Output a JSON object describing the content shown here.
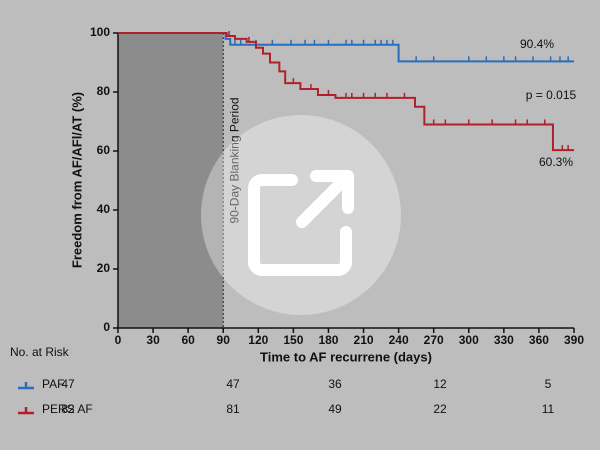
{
  "chart_data": {
    "type": "km",
    "xlabel": "Time to AF recurrene (days)",
    "ylabel": "Freedom from AF/AFl/AT (%)",
    "xlim": [
      0,
      390
    ],
    "xticks": [
      0,
      30,
      60,
      90,
      120,
      150,
      180,
      210,
      240,
      270,
      300,
      330,
      360,
      390
    ],
    "ylim": [
      0,
      100
    ],
    "yticks": [
      0,
      20,
      40,
      60,
      80,
      100
    ],
    "blanking_label": "90-Day Blanking Period",
    "blanking_x": 90,
    "annotations": [
      "90.4%",
      "p = 0.015",
      "60.3%"
    ],
    "series": [
      {
        "name": "PAF",
        "color": "#2a6ebb",
        "x": [
          0,
          90,
          92,
          96,
          240,
          390
        ],
        "values": [
          100,
          100,
          98,
          96,
          90.4,
          90.4
        ],
        "censored": {
          "x": [
            100,
            105,
            118,
            132,
            148,
            160,
            168,
            180,
            195,
            200,
            210,
            220,
            225,
            230,
            235,
            255,
            270,
            300,
            315,
            330,
            340,
            355,
            370,
            378,
            385
          ],
          "values": [
            96,
            96,
            96,
            96,
            96,
            96,
            96,
            96,
            96,
            96,
            96,
            96,
            96,
            96,
            96,
            90.4,
            90.4,
            90.4,
            90.4,
            90.4,
            90.4,
            90.4,
            90.4,
            90.4,
            90.4
          ]
        }
      },
      {
        "name": "PERS AF",
        "color": "#b0202a",
        "x": [
          0,
          90,
          93,
          100,
          110,
          118,
          124,
          130,
          138,
          143,
          156,
          171,
          186,
          254,
          262,
          372,
          390
        ],
        "values": [
          100,
          100,
          99,
          98,
          97,
          95,
          93,
          90,
          87,
          83,
          81,
          79,
          78,
          75,
          69,
          60.3,
          60.3
        ],
        "censored": {
          "x": [
            95,
            112,
            150,
            165,
            180,
            195,
            200,
            210,
            220,
            230,
            245,
            270,
            280,
            300,
            320,
            340,
            350,
            365,
            380,
            385
          ],
          "values": [
            99,
            97,
            83,
            81,
            79,
            78,
            78,
            78,
            78,
            78,
            78,
            69,
            69,
            69,
            69,
            69,
            69,
            69,
            60.3,
            60.3
          ]
        }
      }
    ],
    "risk_table": {
      "title": "No. at Risk",
      "rows": [
        {
          "name": "PAF",
          "counts": [
            47,
            47,
            36,
            12,
            5
          ]
        },
        {
          "name": "PERS AF",
          "counts": [
            82,
            81,
            49,
            22,
            11
          ]
        }
      ]
    }
  }
}
